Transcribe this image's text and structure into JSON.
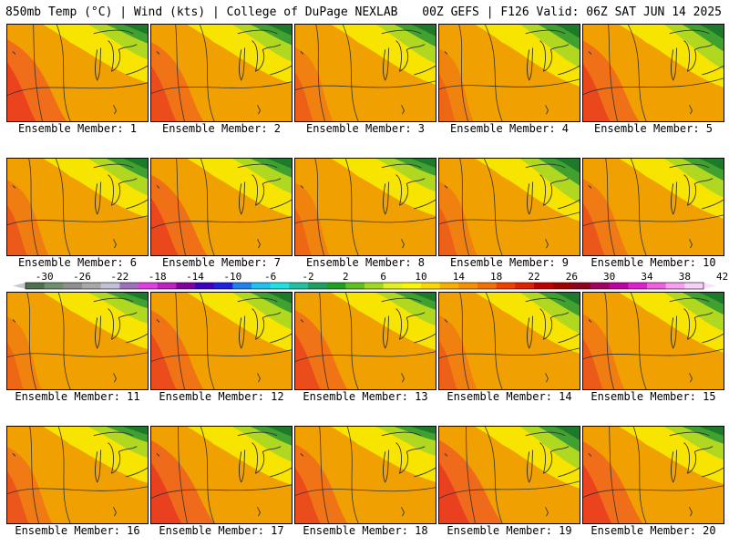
{
  "header": {
    "left": "850mb Temp (°C) | Wind (kts) | College of DuPage NEXLAB",
    "right": "00Z GEFS | F126 Valid: 06Z SAT JUN 14 2025"
  },
  "member_label_prefix": "Ensemble Member: ",
  "members": [
    {
      "number": "1"
    },
    {
      "number": "2"
    },
    {
      "number": "3"
    },
    {
      "number": "4"
    },
    {
      "number": "5"
    },
    {
      "number": "6"
    },
    {
      "number": "7"
    },
    {
      "number": "8"
    },
    {
      "number": "9"
    },
    {
      "number": "10"
    },
    {
      "number": "11"
    },
    {
      "number": "12"
    },
    {
      "number": "13"
    },
    {
      "number": "14"
    },
    {
      "number": "15"
    },
    {
      "number": "16"
    },
    {
      "number": "17"
    },
    {
      "number": "18"
    },
    {
      "number": "19"
    },
    {
      "number": "20"
    }
  ],
  "colorbar": {
    "tick_labels": [
      "-30",
      "-26",
      "-22",
      "-18",
      "-14",
      "-10",
      "-6",
      "-2",
      "2",
      "6",
      "10",
      "14",
      "18",
      "22",
      "26",
      "30",
      "34",
      "38",
      "42"
    ],
    "colors": [
      "#4f6f4f",
      "#6f8f6f",
      "#8f8f8f",
      "#a8a8a8",
      "#c0c0d8",
      "#a070c0",
      "#e040e0",
      "#c020c0",
      "#8000a0",
      "#4000c0",
      "#2020e0",
      "#2080f0",
      "#20c0f0",
      "#20e0e0",
      "#20c0a0",
      "#20a060",
      "#20a020",
      "#60c020",
      "#a0d820",
      "#e0f020",
      "#f8f800",
      "#f8d800",
      "#f8b000",
      "#f89000",
      "#f07000",
      "#f04000",
      "#e02000",
      "#c00000",
      "#a00000",
      "#900020",
      "#a00060",
      "#c000a0",
      "#e020d0",
      "#f060e0",
      "#f8a0f0",
      "#f8d0f8"
    ]
  },
  "palette": {
    "warm": "#f0a000",
    "hot": "#f06020",
    "hotter": "#e83820",
    "yellow": "#f8f000",
    "yellow_green": "#b0d820",
    "green": "#40a030",
    "dark_green": "#1c7a28",
    "contour": "#333333"
  }
}
